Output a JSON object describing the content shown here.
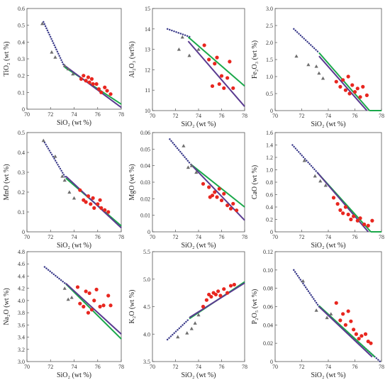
{
  "colors": {
    "tri": "#6e6e6e",
    "dot": "#e8261f",
    "green": "#1aa84a",
    "purple": "#5a3a90",
    "dotted": "#3a3a8a",
    "frame": "#555555"
  },
  "chart_data": [
    {
      "type": "scatter",
      "xlabel": "SiO₂ (wt %)",
      "ylabel": "TiO₂ (wt %)",
      "xlim": [
        70,
        78
      ],
      "ylim": [
        0,
        0.6
      ],
      "xticks": [
        "70",
        "72",
        "74",
        "76",
        "78"
      ],
      "yticks": [
        "0",
        "0.1",
        "0.2",
        "0.3",
        "0.4",
        "0.5",
        "0.6"
      ],
      "triangles": [
        [
          71.3,
          0.51
        ],
        [
          72.1,
          0.34
        ],
        [
          72.4,
          0.31
        ],
        [
          73.2,
          0.26
        ],
        [
          73.5,
          0.24
        ],
        [
          73.9,
          0.21
        ]
      ],
      "circles": [
        [
          74.6,
          0.18
        ],
        [
          74.8,
          0.2
        ],
        [
          75.0,
          0.17
        ],
        [
          75.2,
          0.19
        ],
        [
          75.3,
          0.16
        ],
        [
          75.5,
          0.18
        ],
        [
          75.6,
          0.15
        ],
        [
          75.9,
          0.15
        ],
        [
          76.1,
          0.12
        ],
        [
          76.3,
          0.1
        ],
        [
          76.6,
          0.13
        ],
        [
          76.8,
          0.11
        ],
        [
          77.1,
          0.09
        ]
      ],
      "dotted": [
        [
          71.4,
          0.52
        ],
        [
          73.2,
          0.25
        ]
      ],
      "green": [
        [
          73.2,
          0.25
        ],
        [
          78,
          0.03
        ]
      ],
      "purple": [
        [
          73.2,
          0.26
        ],
        [
          78,
          0.01
        ]
      ]
    },
    {
      "type": "scatter",
      "xlabel": "SiO₂ (wt %)",
      "ylabel": "Al₂O₃ (wt%)",
      "xlim": [
        70,
        78
      ],
      "ylim": [
        10,
        15
      ],
      "xticks": [
        "70",
        "72",
        "74",
        "76",
        "78"
      ],
      "yticks": [
        "10",
        "11",
        "12",
        "13",
        "14",
        "15"
      ],
      "triangles": [
        [
          72.3,
          13.0
        ],
        [
          72.6,
          13.6
        ],
        [
          73.2,
          12.7
        ],
        [
          74.0,
          13.0
        ]
      ],
      "circles": [
        [
          74.5,
          13.2
        ],
        [
          74.9,
          12.5
        ],
        [
          75.2,
          11.2
        ],
        [
          75.4,
          12.3
        ],
        [
          75.6,
          12.6
        ],
        [
          75.8,
          11.3
        ],
        [
          76.0,
          11.7
        ],
        [
          76.2,
          11.1
        ],
        [
          76.5,
          11.6
        ],
        [
          76.7,
          12.4
        ],
        [
          77.0,
          11.1
        ]
      ],
      "dotted": [
        [
          71.3,
          14.0
        ],
        [
          73.3,
          13.6
        ]
      ],
      "green": [
        [
          73.1,
          13.6
        ],
        [
          78,
          11.2
        ]
      ],
      "purple": [
        [
          73.1,
          13.4
        ],
        [
          78,
          10.2
        ]
      ]
    },
    {
      "type": "scatter",
      "xlabel": "SiO₂ (wt %)",
      "ylabel": "Fe₂O₃ (wt %)",
      "xlim": [
        70,
        78
      ],
      "ylim": [
        0,
        3.0
      ],
      "xticks": [
        "70",
        "72",
        "74",
        "76",
        "78"
      ],
      "yticks": [
        "0",
        "0.5",
        "1.0",
        "1.5",
        "2.0",
        "2.5",
        "3.0"
      ],
      "triangles": [
        [
          71.6,
          1.6
        ],
        [
          72.5,
          1.35
        ],
        [
          73.1,
          1.3
        ],
        [
          73.3,
          1.1
        ],
        [
          73.6,
          0.95
        ]
      ],
      "circles": [
        [
          74.6,
          0.85
        ],
        [
          74.9,
          0.7
        ],
        [
          75.1,
          0.9
        ],
        [
          75.3,
          0.6
        ],
        [
          75.5,
          1.0
        ],
        [
          75.6,
          0.5
        ],
        [
          75.8,
          0.75
        ],
        [
          76.0,
          0.55
        ],
        [
          76.2,
          0.65
        ],
        [
          76.4,
          0.4
        ],
        [
          76.6,
          0.7
        ],
        [
          76.9,
          0.45
        ]
      ],
      "dotted": [
        [
          71.4,
          2.4
        ],
        [
          73.3,
          1.7
        ]
      ],
      "green": [
        [
          73.3,
          1.7
        ],
        [
          77.1,
          0
        ]
      ],
      "purple": [
        [
          73.3,
          1.6
        ],
        [
          76.9,
          0
        ]
      ],
      "extra_lines": [
        [
          [
            77.1,
            0
          ],
          [
            78,
            0
          ]
        ]
      ]
    },
    {
      "type": "scatter",
      "xlabel": "SiO₂ (wt %)",
      "ylabel": "MnO (wt %)",
      "xlim": [
        70,
        78
      ],
      "ylim": [
        0,
        0.5
      ],
      "xticks": [
        "70",
        "72",
        "74",
        "76",
        "78"
      ],
      "yticks": [
        "0",
        "0.1",
        "0.2",
        "0.3",
        "0.4",
        "0.5"
      ],
      "triangles": [
        [
          71.4,
          0.46
        ],
        [
          72.4,
          0.38
        ],
        [
          73.0,
          0.28
        ],
        [
          73.2,
          0.26
        ],
        [
          73.6,
          0.2
        ],
        [
          74.0,
          0.17
        ]
      ],
      "circles": [
        [
          74.5,
          0.21
        ],
        [
          74.8,
          0.16
        ],
        [
          75.0,
          0.15
        ],
        [
          75.2,
          0.18
        ],
        [
          75.4,
          0.14
        ],
        [
          75.6,
          0.17
        ],
        [
          75.7,
          0.12
        ],
        [
          76.0,
          0.14
        ],
        [
          76.2,
          0.16
        ],
        [
          76.3,
          0.12
        ],
        [
          76.6,
          0.11
        ],
        [
          76.9,
          0.1
        ]
      ],
      "dotted": [
        [
          71.4,
          0.46
        ],
        [
          73.3,
          0.27
        ]
      ],
      "green": [
        [
          73.3,
          0.27
        ],
        [
          78,
          0.03
        ]
      ],
      "purple": [
        [
          73.3,
          0.28
        ],
        [
          78,
          0.02
        ]
      ]
    },
    {
      "type": "scatter",
      "xlabel": "SiO₂ (wt %)",
      "ylabel": "MgO (wt %)",
      "xlim": [
        70,
        78
      ],
      "ylim": [
        0,
        0.06
      ],
      "xticks": [
        "70",
        "72",
        "74",
        "76",
        "78"
      ],
      "yticks": [
        "0",
        "0.01",
        "0.02",
        "0.03",
        "0.04",
        "0.05",
        "0.06"
      ],
      "triangles": [
        [
          72.7,
          0.052
        ],
        [
          73.1,
          0.039
        ],
        [
          73.4,
          0.04
        ],
        [
          73.8,
          0.036
        ]
      ],
      "circles": [
        [
          74.4,
          0.029
        ],
        [
          74.9,
          0.027
        ],
        [
          75.0,
          0.021
        ],
        [
          75.2,
          0.022
        ],
        [
          75.4,
          0.024
        ],
        [
          75.6,
          0.021
        ],
        [
          75.8,
          0.026
        ],
        [
          76.0,
          0.019
        ],
        [
          76.2,
          0.023
        ],
        [
          76.5,
          0.016
        ],
        [
          76.8,
          0.014
        ],
        [
          77.0,
          0.017
        ],
        [
          77.3,
          0.013
        ]
      ],
      "dotted": [
        [
          71.5,
          0.056
        ],
        [
          73.3,
          0.041
        ]
      ],
      "green": [
        [
          73.3,
          0.041
        ],
        [
          78,
          0.015
        ]
      ],
      "purple": [
        [
          73.3,
          0.041
        ],
        [
          78,
          0.007
        ]
      ]
    },
    {
      "type": "scatter",
      "xlabel": "SiO₂ (wt %)",
      "ylabel": "CaO (wt %)",
      "xlim": [
        70,
        78
      ],
      "ylim": [
        0,
        1.6
      ],
      "xticks": [
        "70",
        "72",
        "74",
        "76",
        "78"
      ],
      "yticks": [
        "0",
        "0.2",
        "0.4",
        "0.6",
        "0.8",
        "1.0",
        "1.2",
        "1.4",
        "1.6"
      ],
      "triangles": [
        [
          72.2,
          1.15
        ],
        [
          73.0,
          0.9
        ],
        [
          73.4,
          0.82
        ],
        [
          73.8,
          0.75
        ]
      ],
      "circles": [
        [
          74.4,
          0.55
        ],
        [
          74.7,
          0.45
        ],
        [
          74.9,
          0.35
        ],
        [
          75.1,
          0.3
        ],
        [
          75.3,
          0.4
        ],
        [
          75.5,
          0.28
        ],
        [
          75.7,
          0.2
        ],
        [
          75.9,
          0.25
        ],
        [
          76.2,
          0.18
        ],
        [
          76.4,
          0.22
        ],
        [
          76.7,
          0.12
        ],
        [
          77.0,
          0.1
        ],
        [
          77.3,
          0.18
        ]
      ],
      "dotted": [
        [
          71.3,
          1.4
        ],
        [
          73.2,
          0.95
        ]
      ],
      "green": [
        [
          73.2,
          0.95
        ],
        [
          77.2,
          0
        ]
      ],
      "purple": [
        [
          73.2,
          0.95
        ],
        [
          77.0,
          0
        ]
      ],
      "extra_lines": [
        [
          [
            77.2,
            0
          ],
          [
            78,
            0
          ]
        ]
      ]
    },
    {
      "type": "scatter",
      "xlabel": "SiO₂ (wt %)",
      "ylabel": "Na₂O (wt %)",
      "xlim": [
        70,
        78
      ],
      "ylim": [
        3.0,
        4.8
      ],
      "xticks": [
        "70",
        "72",
        "74",
        "76",
        "78"
      ],
      "yticks": [
        "3.0",
        "3.2",
        "3.4",
        "3.6",
        "3.8",
        "4.0",
        "4.2",
        "4.4",
        "4.6",
        "4.8"
      ],
      "triangles": [
        [
          73.2,
          4.2
        ],
        [
          73.5,
          4.02
        ],
        [
          73.8,
          4.05
        ]
      ],
      "circles": [
        [
          74.3,
          4.22
        ],
        [
          74.5,
          3.95
        ],
        [
          74.8,
          3.9
        ],
        [
          75.0,
          4.15
        ],
        [
          75.2,
          3.8
        ],
        [
          75.3,
          4.12
        ],
        [
          75.5,
          3.85
        ],
        [
          75.7,
          4.0
        ],
        [
          75.9,
          4.18
        ],
        [
          76.2,
          3.9
        ],
        [
          76.5,
          3.92
        ],
        [
          76.9,
          4.08
        ],
        [
          77.1,
          3.92
        ]
      ],
      "dotted": [
        [
          71.5,
          4.55
        ],
        [
          73.3,
          4.27
        ]
      ],
      "green": [
        [
          73.3,
          4.27
        ],
        [
          78,
          3.37
        ]
      ],
      "purple": [
        [
          73.3,
          4.28
        ],
        [
          78,
          3.45
        ]
      ]
    },
    {
      "type": "scatter",
      "xlabel": "SiO₂ (wt %)",
      "ylabel": "K₂O (wt %)",
      "xlim": [
        70,
        78
      ],
      "ylim": [
        3.5,
        5.5
      ],
      "xticks": [
        "70",
        "72",
        "74",
        "76",
        "78"
      ],
      "yticks": [
        "3.5",
        "4.0",
        "4.5",
        "5.0",
        "5.5"
      ],
      "triangles": [
        [
          72.2,
          3.95
        ],
        [
          73.0,
          4.02
        ],
        [
          73.4,
          4.1
        ],
        [
          73.7,
          4.2
        ],
        [
          74.0,
          4.35
        ]
      ],
      "circles": [
        [
          74.4,
          4.5
        ],
        [
          74.7,
          4.62
        ],
        [
          74.9,
          4.72
        ],
        [
          75.1,
          4.68
        ],
        [
          75.3,
          4.75
        ],
        [
          75.5,
          4.72
        ],
        [
          75.7,
          4.78
        ],
        [
          75.9,
          4.7
        ],
        [
          76.2,
          4.82
        ],
        [
          76.5,
          4.75
        ],
        [
          76.8,
          4.88
        ],
        [
          77.1,
          4.9
        ]
      ],
      "dotted": [
        [
          71.3,
          3.9
        ],
        [
          73.2,
          4.28
        ]
      ],
      "green": [
        [
          73.2,
          4.28
        ],
        [
          78,
          4.95
        ]
      ],
      "purple": [
        [
          73.2,
          4.3
        ],
        [
          78,
          4.93
        ]
      ]
    },
    {
      "type": "scatter",
      "xlabel": "SiO₂ (wt %)",
      "ylabel": "P₂O₅ (wt %)",
      "xlim": [
        70,
        78
      ],
      "ylim": [
        0,
        0.12
      ],
      "xticks": [
        "70",
        "72",
        "74",
        "76",
        "78"
      ],
      "yticks": [
        "0",
        "0.02",
        "0.04",
        "0.06",
        "0.08",
        "0.10",
        "0.12"
      ],
      "triangles": [
        [
          72.1,
          0.088
        ],
        [
          73.1,
          0.056
        ],
        [
          73.9,
          0.048
        ],
        [
          74.2,
          0.052
        ]
      ],
      "circles": [
        [
          74.6,
          0.064
        ],
        [
          74.9,
          0.045
        ],
        [
          75.1,
          0.052
        ],
        [
          75.3,
          0.04
        ],
        [
          75.5,
          0.055
        ],
        [
          75.7,
          0.044
        ],
        [
          75.9,
          0.035
        ],
        [
          76.1,
          0.03
        ],
        [
          76.3,
          0.025
        ],
        [
          76.5,
          0.028
        ],
        [
          76.8,
          0.03
        ],
        [
          77.0,
          0.022
        ],
        [
          77.2,
          0.02
        ]
      ],
      "dotted": [
        [
          71.4,
          0.1
        ],
        [
          73.3,
          0.06
        ],
        [
          77.9,
          0
        ]
      ],
      "green": [
        [
          73.3,
          0.061
        ],
        [
          77.5,
          0.005
        ]
      ],
      "purple": [
        [
          73.3,
          0.06
        ],
        [
          77.3,
          0.005
        ]
      ]
    }
  ]
}
